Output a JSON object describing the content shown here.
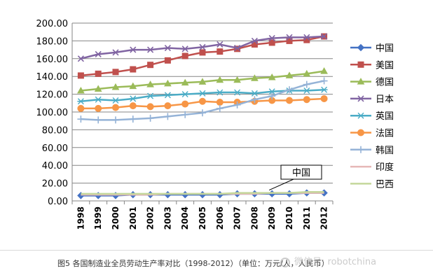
{
  "chart_data": {
    "type": "line",
    "categories": [
      "1998",
      "1999",
      "2000",
      "2001",
      "2002",
      "2003",
      "2004",
      "2005",
      "2006",
      "2007",
      "2008",
      "2009",
      "2010",
      "2011",
      "2012"
    ],
    "ylim": [
      0,
      200
    ],
    "yticks": [
      "0.00",
      "20.00",
      "40.00",
      "60.00",
      "80.00",
      "100.00",
      "120.00",
      "140.00",
      "160.00",
      "180.00",
      "200.00"
    ],
    "grid": true,
    "legend_position": "right",
    "series": [
      {
        "name": "中国",
        "color": "#4472C4",
        "marker": "diamond",
        "values": [
          6,
          6,
          6,
          7,
          7,
          7,
          7,
          7,
          7,
          8,
          8,
          8,
          8,
          9,
          9
        ]
      },
      {
        "name": "美国",
        "color": "#C0504D",
        "marker": "square",
        "values": [
          141,
          143,
          145,
          148,
          153,
          158,
          163,
          167,
          168,
          171,
          176,
          178,
          180,
          181,
          185
        ]
      },
      {
        "name": "德国",
        "color": "#9BBB59",
        "marker": "triangle",
        "values": [
          124,
          126,
          128,
          129,
          131,
          132,
          133,
          134,
          136,
          136,
          138,
          139,
          141,
          143,
          146
        ]
      },
      {
        "name": "日本",
        "color": "#8064A2",
        "marker": "x",
        "values": [
          160,
          165,
          167,
          170,
          170,
          172,
          171,
          173,
          176,
          172,
          180,
          183,
          184,
          184,
          185
        ]
      },
      {
        "name": "英国",
        "color": "#4BACC6",
        "marker": "star",
        "values": [
          112,
          114,
          113,
          115,
          118,
          119,
          120,
          121,
          122,
          122,
          121,
          123,
          124,
          124,
          125
        ]
      },
      {
        "name": "法国",
        "color": "#F79646",
        "marker": "circle",
        "values": [
          104,
          104,
          105,
          107,
          106,
          107,
          109,
          112,
          111,
          111,
          112,
          113,
          113,
          114,
          115
        ]
      },
      {
        "name": "韩国",
        "color": "#95B3D7",
        "marker": "plus",
        "values": [
          92,
          91,
          91,
          92,
          93,
          95,
          97,
          99,
          104,
          108,
          114,
          118,
          125,
          131,
          135
        ]
      },
      {
        "name": "印度",
        "color": "#E6B8B7",
        "marker": "none",
        "values": [
          7,
          7,
          7,
          7,
          7,
          8,
          8,
          8,
          8,
          8,
          8,
          9,
          9,
          9,
          9
        ]
      },
      {
        "name": "巴西",
        "color": "#C4D79B",
        "marker": "none",
        "values": [
          8,
          8,
          8,
          8,
          8,
          8,
          8,
          8,
          8,
          9,
          9,
          9,
          9,
          10,
          10
        ]
      }
    ],
    "annotation": {
      "text": "中国",
      "x": "2009",
      "y": 9
    }
  },
  "caption": "图5 各国制造业全员劳动生产率对比（1998-2012）（单位：万元/人，人民币）",
  "watermark": "微信号: robotchina"
}
